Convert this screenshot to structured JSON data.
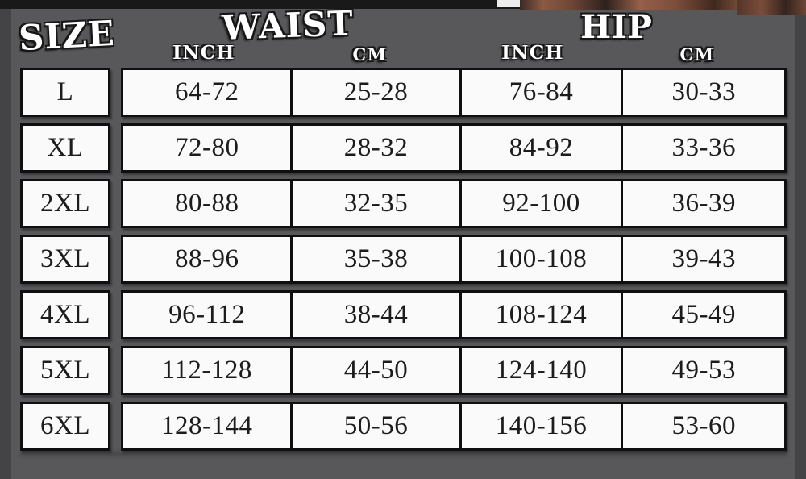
{
  "colors": {
    "background": "#58585a",
    "edge_shade": "#47474a",
    "top_bar": "#191919",
    "brick_texture": "#7a4c3a",
    "cell_background": "#fafafa",
    "cell_border": "#0f0f0f",
    "cell_text": "#1c1c1c",
    "header_text": "#ffffff"
  },
  "header": {
    "size": "SIZE",
    "waist": "WAIST",
    "hip": "HIP",
    "waist_unit_inch": "INCH",
    "waist_unit_cm": "CM",
    "hip_unit_inch": "INCH",
    "hip_unit_cm": "CM"
  },
  "chart_data": {
    "type": "table",
    "columns": [
      "SIZE",
      "WAIST INCH",
      "WAIST CM",
      "HIP INCH",
      "HIP CM"
    ],
    "rows": [
      [
        "L",
        "64-72",
        "25-28",
        "76-84",
        "30-33"
      ],
      [
        "XL",
        "72-80",
        "28-32",
        "84-92",
        "33-36"
      ],
      [
        "2XL",
        "80-88",
        "32-35",
        "92-100",
        "36-39"
      ],
      [
        "3XL",
        "88-96",
        "35-38",
        "100-108",
        "39-43"
      ],
      [
        "4XL",
        "96-112",
        "38-44",
        "108-124",
        "45-49"
      ],
      [
        "5XL",
        "112-128",
        "44-50",
        "124-140",
        "49-53"
      ],
      [
        "6XL",
        "128-144",
        "50-56",
        "140-156",
        "53-60"
      ]
    ]
  }
}
